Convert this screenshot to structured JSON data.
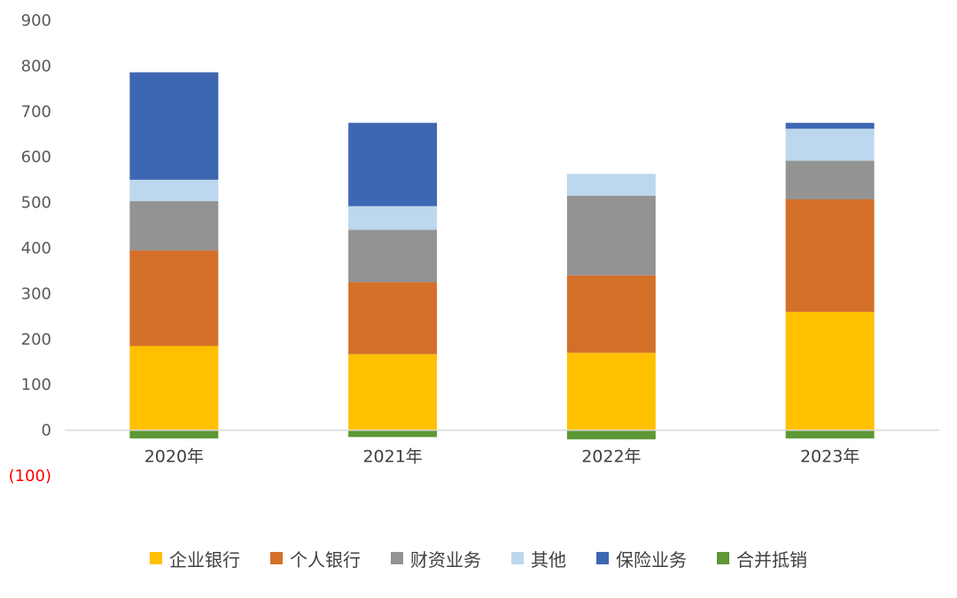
{
  "chart_data": {
    "type": "bar",
    "stacked": true,
    "categories": [
      "2020年",
      "2021年",
      "2022年",
      "2023年"
    ],
    "y_ticks": [
      {
        "value": 900,
        "label": "900"
      },
      {
        "value": 800,
        "label": "800"
      },
      {
        "value": 700,
        "label": "700"
      },
      {
        "value": 600,
        "label": "600"
      },
      {
        "value": 500,
        "label": "500"
      },
      {
        "value": 400,
        "label": "400"
      },
      {
        "value": 300,
        "label": "300"
      },
      {
        "value": 200,
        "label": "200"
      },
      {
        "value": 100,
        "label": "100"
      },
      {
        "value": 0,
        "label": "0"
      },
      {
        "value": -100,
        "label": "(100)"
      }
    ],
    "ylim": [
      -100,
      900
    ],
    "grid": false,
    "legend_position": "bottom",
    "series": [
      {
        "name": "企业银行",
        "color": "#FFC000",
        "values": [
          185,
          167,
          170,
          260
        ]
      },
      {
        "name": "个人银行",
        "color": "#D4702A",
        "values": [
          210,
          158,
          170,
          247
        ]
      },
      {
        "name": "财资业务",
        "color": "#939393",
        "values": [
          108,
          115,
          175,
          85
        ]
      },
      {
        "name": "其他",
        "color": "#BDD7EE",
        "values": [
          47,
          52,
          48,
          70
        ]
      },
      {
        "name": "保险业务",
        "color": "#3D67B1",
        "values": [
          236,
          183,
          0,
          13
        ]
      },
      {
        "name": "合并抵销",
        "color": "#5E9735",
        "values": [
          -18,
          -15,
          -20,
          -18
        ]
      }
    ]
  }
}
